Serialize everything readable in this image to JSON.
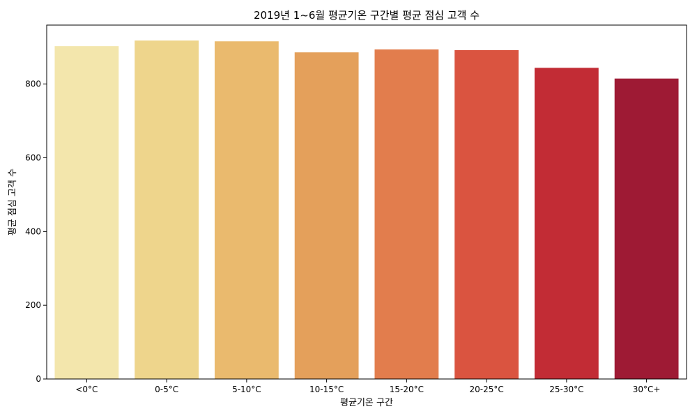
{
  "chart_data": {
    "type": "bar",
    "title": "2019년 1~6월 평균기온 구간별 평균 점심 고객 수",
    "xlabel": "평균기온 구간",
    "ylabel": "평균 점심 고객 수",
    "categories": [
      "<0°C",
      "0-5°C",
      "5-10°C",
      "10-15°C",
      "15-20°C",
      "20-25°C",
      "25-30°C",
      "30°C+"
    ],
    "values": [
      903,
      918,
      916,
      886,
      894,
      892,
      844,
      815
    ],
    "colors": [
      "#f3e6ac",
      "#eed58c",
      "#eaba6e",
      "#e4a05b",
      "#e27d4d",
      "#da5440",
      "#c22c35",
      "#9e1a34"
    ],
    "ylim": [
      0,
      960
    ],
    "yticks": [
      0,
      200,
      400,
      600,
      800
    ],
    "grid": false,
    "legend": "none"
  }
}
